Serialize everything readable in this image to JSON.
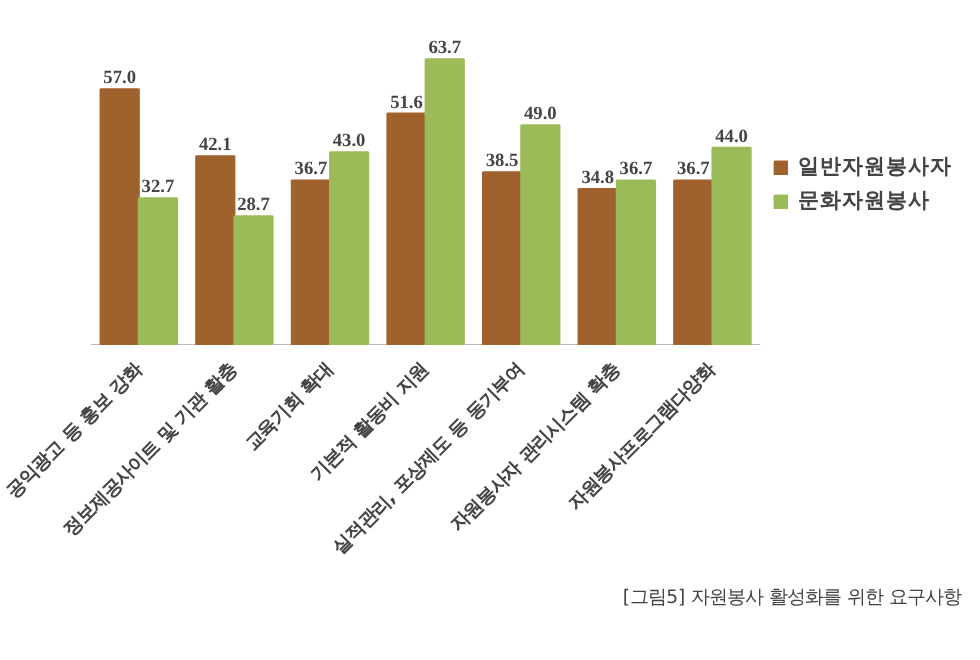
{
  "chart_data": {
    "type": "bar",
    "categories": [
      "공익광고 등 홍보 강화",
      "정보제공사이트 및 기관 활충",
      "교육기회 확대",
      "기본적 활동비 지원",
      "실적관리, 포상제도 등 동기부여",
      "자원봉사자 관리시스템 확충",
      "자원봉사프로그램다양화"
    ],
    "series": [
      {
        "name": "일반자원봉사자",
        "color": "#a0622d",
        "values": [
          57.0,
          42.1,
          36.7,
          51.6,
          38.5,
          34.8,
          36.7
        ],
        "value_labels": [
          "57.0",
          "42.1",
          "36.7",
          "51.6",
          "38.5",
          "34.8",
          "36.7"
        ]
      },
      {
        "name": "문화자원봉사",
        "color": "#9bbb59",
        "values": [
          32.7,
          28.7,
          43.0,
          63.7,
          49.0,
          36.7,
          44.0
        ],
        "value_labels": [
          "32.7",
          "28.7",
          "43.0",
          "63.7",
          "49.0",
          "36.7",
          "44.0"
        ]
      }
    ],
    "legend": "right",
    "tick_labels": "x",
    "annotations": [
      "[그림5] 자원봉사 활성화를 위한 요구사항"
    ]
  }
}
